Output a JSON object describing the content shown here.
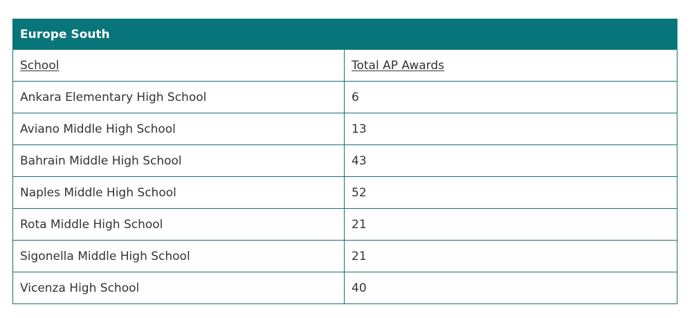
{
  "table": {
    "region": "Europe South",
    "headers": [
      "School",
      "Total AP Awards"
    ],
    "rows": [
      {
        "school": "Ankara Elementary High School",
        "awards": "6"
      },
      {
        "school": "Aviano Middle High School",
        "awards": "13"
      },
      {
        "school": "Bahrain Middle High School",
        "awards": "43"
      },
      {
        "school": "Naples Middle High School",
        "awards": "52"
      },
      {
        "school": "Rota Middle High School",
        "awards": "21"
      },
      {
        "school": "Sigonella Middle High School",
        "awards": "21"
      },
      {
        "school": "Vicenza High School",
        "awards": "40"
      }
    ]
  },
  "colors": {
    "header_bg": "#08757a",
    "border": "#1b6b74",
    "text": "#333333"
  }
}
